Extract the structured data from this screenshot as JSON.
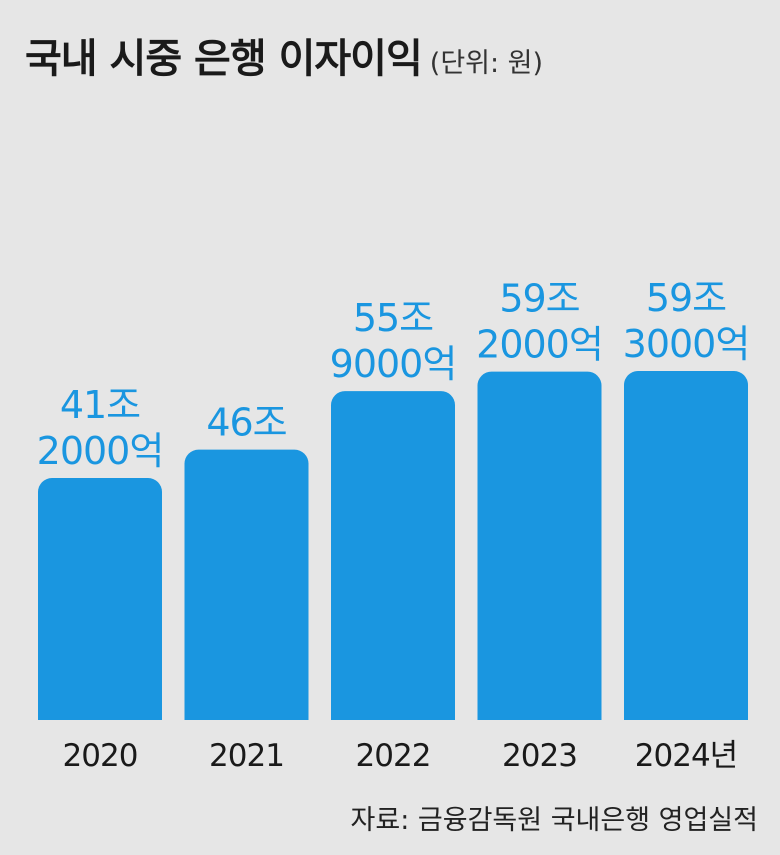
{
  "chart_data": {
    "type": "bar",
    "title": "국내 시중 은행 이자이익",
    "unit_label": "(단위: 원)",
    "categories": [
      "2020",
      "2021",
      "2022",
      "2023",
      "2024년"
    ],
    "values": [
      41.2,
      46.0,
      55.9,
      59.2,
      59.3
    ],
    "value_unit": "조원",
    "data_labels": [
      [
        "41조",
        "2000억"
      ],
      [
        "46조"
      ],
      [
        "55조",
        "9000억"
      ],
      [
        "59조",
        "2000억"
      ],
      [
        "59조",
        "3000억"
      ]
    ],
    "source": "자료: 금융감독원 국내은행 영업실적",
    "grid": false,
    "legend": "none",
    "colors": {
      "bar": "#1a96e0",
      "label": "#1a96e0",
      "background": "#e6e6e6",
      "text": "#1a1a1a"
    }
  }
}
